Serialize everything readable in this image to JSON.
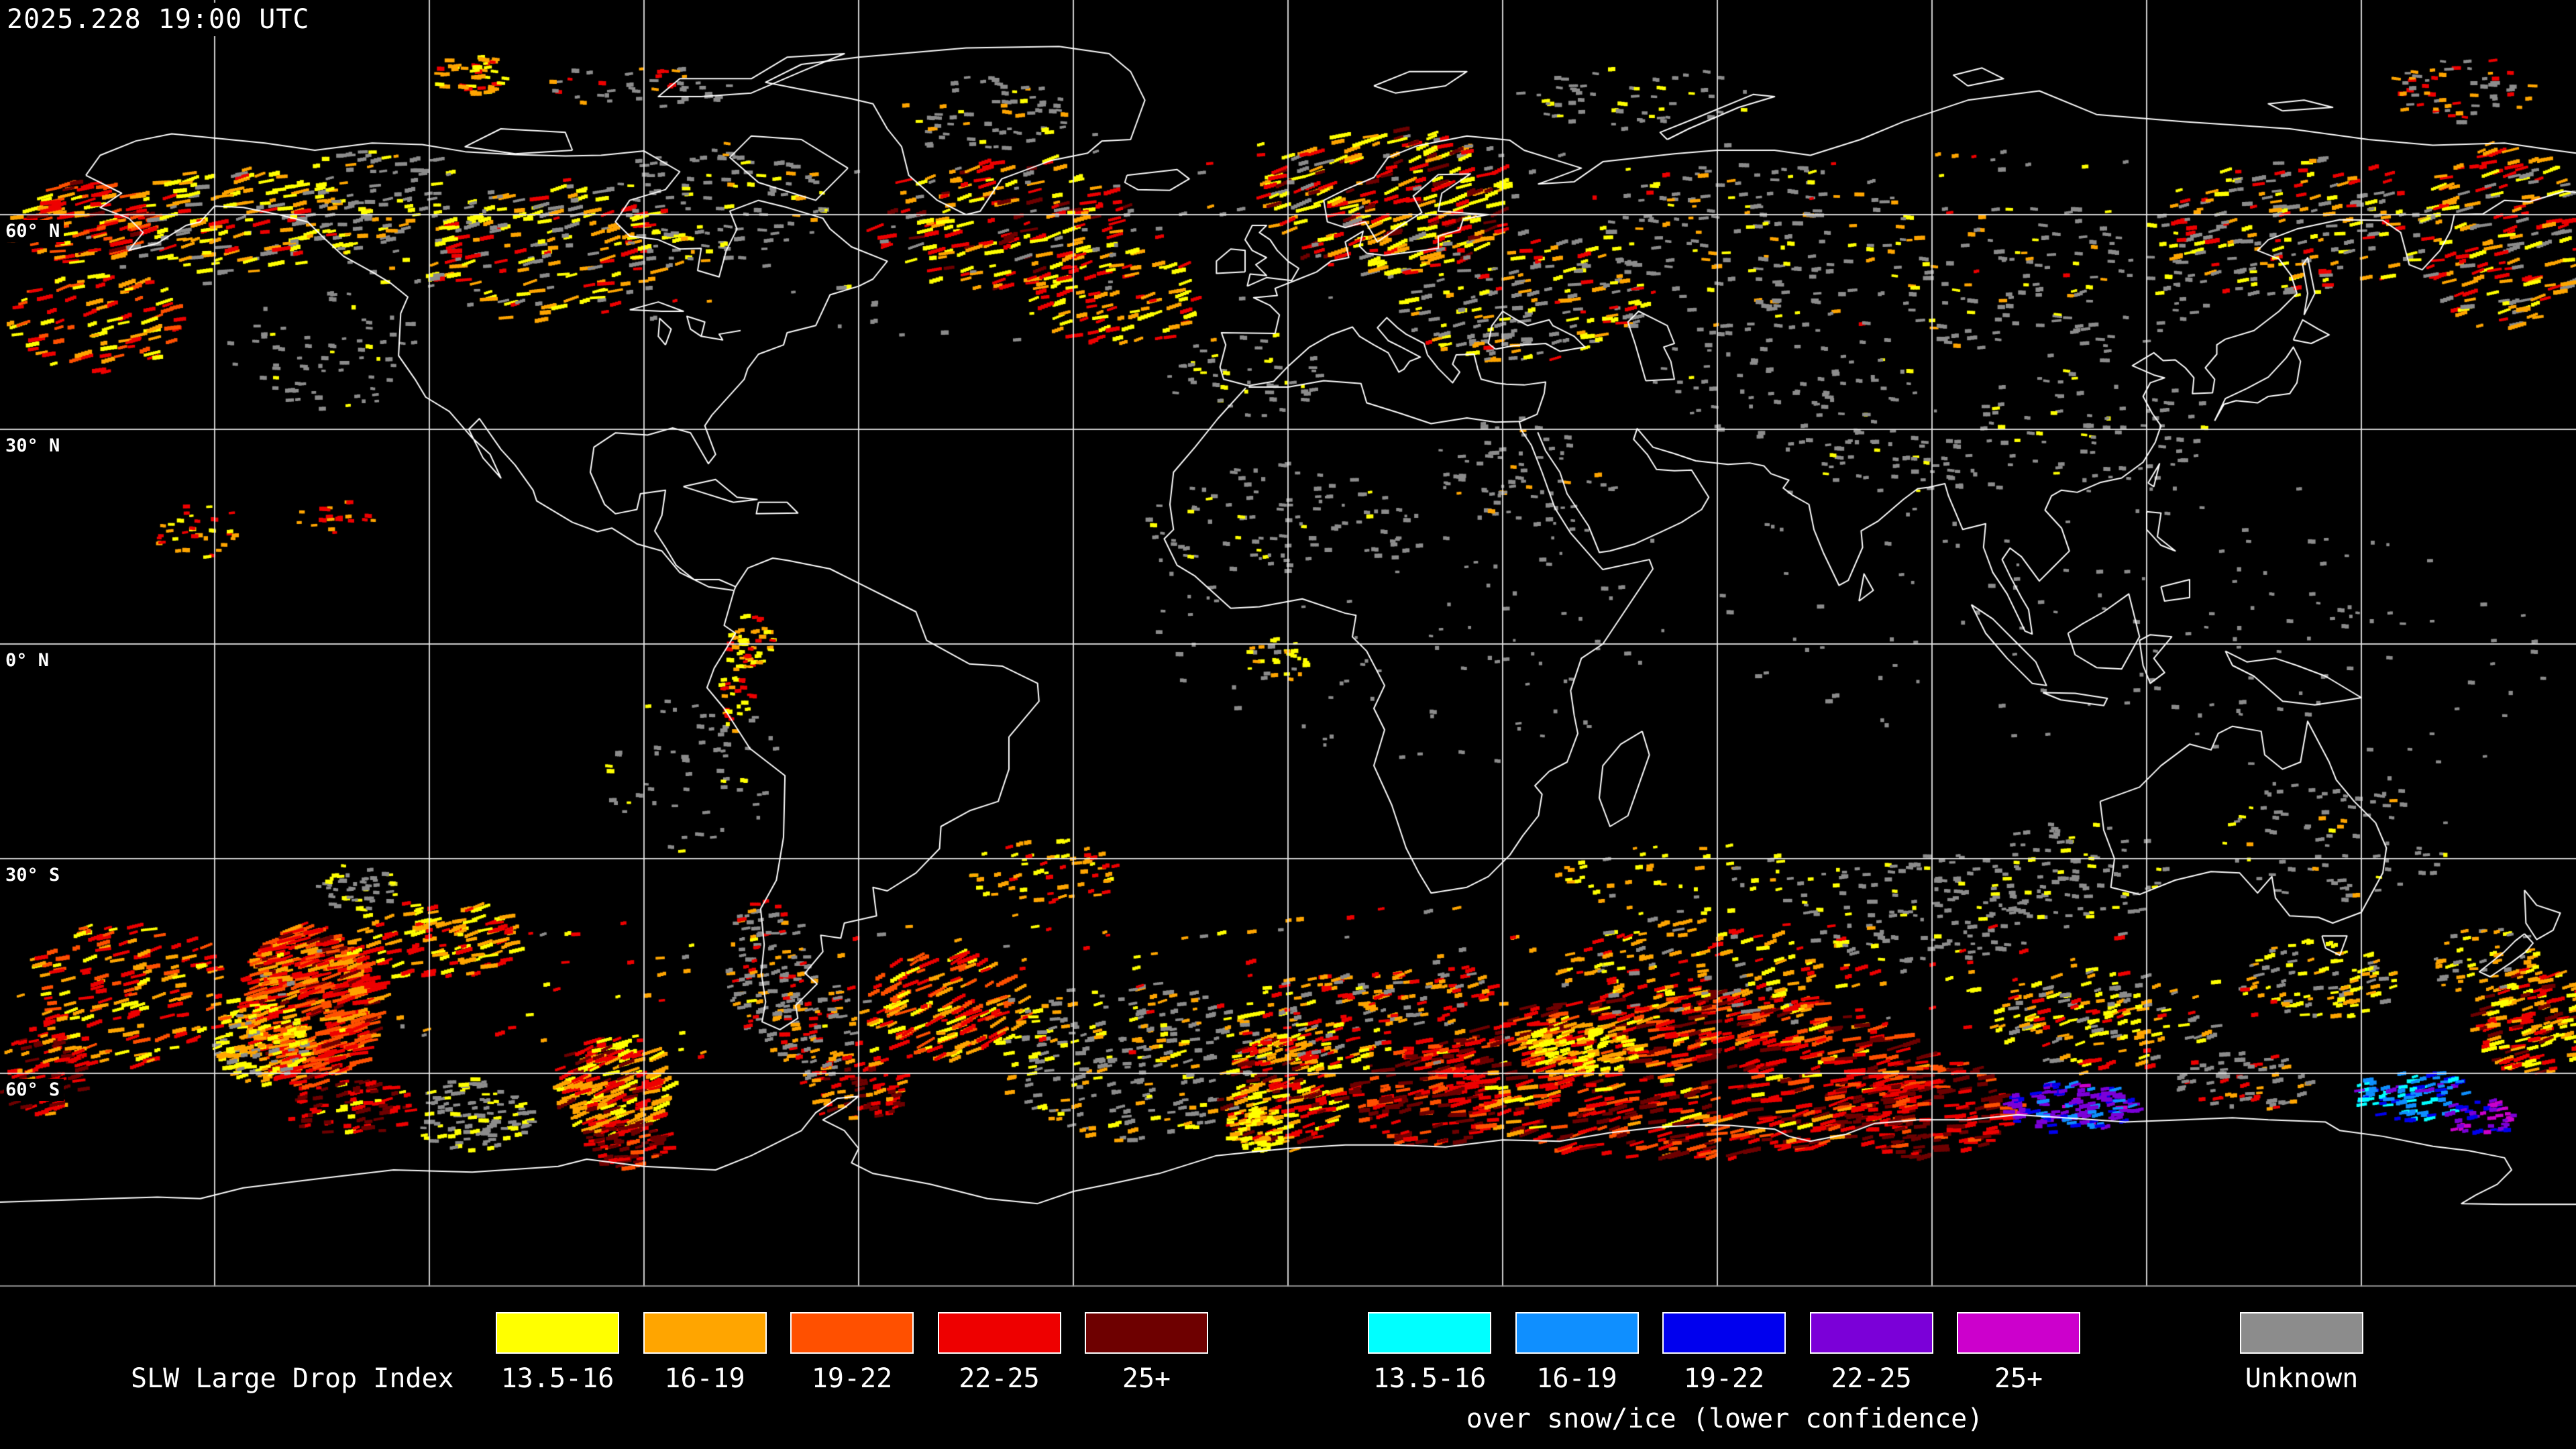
{
  "header": {
    "timestamp": "2025.228 19:00 UTC"
  },
  "map": {
    "background_color": "#000000",
    "gridline_color": "#e8e8e8",
    "coastline_color": "#ffffff",
    "grid_interval_degrees": 30,
    "latitude_labels": [
      {
        "text": "60° N",
        "lat": 60
      },
      {
        "text": "30° N",
        "lat": 30
      },
      {
        "text": "0° N",
        "lat": 0
      },
      {
        "text": "30° S",
        "lat": -30
      },
      {
        "text": "60° S",
        "lat": -60
      }
    ]
  },
  "legend": {
    "title": "SLW Large Drop Index",
    "standard_scale": [
      {
        "range": "13.5-16",
        "color": "#ffff00"
      },
      {
        "range": "16-19",
        "color": "#ffa500"
      },
      {
        "range": "19-22",
        "color": "#ff5000"
      },
      {
        "range": "22-25",
        "color": "#ee0000"
      },
      {
        "range": "25+",
        "color": "#6e0000"
      }
    ],
    "snow_ice_scale": [
      {
        "range": "13.5-16",
        "color": "#00ffff"
      },
      {
        "range": "16-19",
        "color": "#0f8fff"
      },
      {
        "range": "19-22",
        "color": "#0000ee"
      },
      {
        "range": "22-25",
        "color": "#7b00d8"
      },
      {
        "range": "25+",
        "color": "#cc00cc"
      }
    ],
    "snow_ice_note": "over snow/ice (lower confidence)",
    "unknown": {
      "label": "Unknown",
      "color": "#8c8c8c"
    }
  }
}
